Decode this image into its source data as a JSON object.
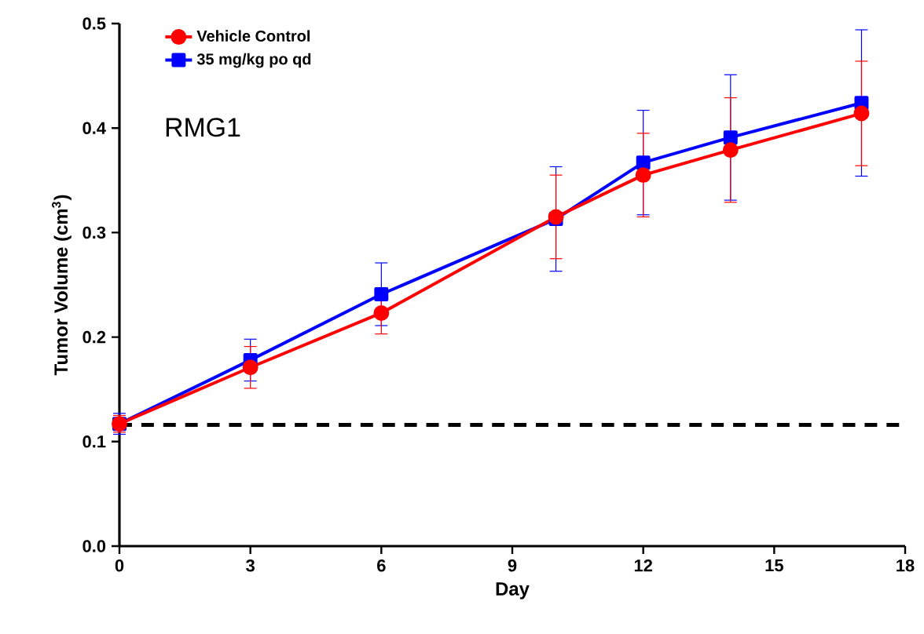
{
  "chart_data": {
    "type": "line",
    "xlabel": "Day",
    "ylabel": "Tumor Volume (cm$^{3}$)",
    "x": [
      0,
      3,
      6,
      10,
      12,
      14,
      17
    ],
    "series": [
      {
        "name": "Vehicle Control",
        "color": "#ff0000",
        "marker": "circle",
        "values": [
          0.117,
          0.171,
          0.223,
          0.315,
          0.355,
          0.379,
          0.414
        ],
        "errors": [
          0.008,
          0.02,
          0.02,
          0.04,
          0.04,
          0.05,
          0.05
        ]
      },
      {
        "name": "35 mg/kg po qd",
        "color": "#0000ff",
        "marker": "square",
        "values": [
          0.117,
          0.178,
          0.241,
          0.313,
          0.367,
          0.391,
          0.424
        ],
        "errors": [
          0.01,
          0.02,
          0.03,
          0.05,
          0.05,
          0.06,
          0.07
        ]
      }
    ],
    "xlim": [
      0,
      18
    ],
    "xticks": [
      0,
      3,
      6,
      9,
      12,
      15,
      18
    ],
    "ylim": [
      0,
      0.5
    ],
    "yticks": [
      {
        "value": 0,
        "label": "0.0"
      },
      {
        "value": 0.1,
        "label": "0.1"
      },
      {
        "value": 0.2,
        "label": "0.2"
      },
      {
        "value": 0.3,
        "label": "0.3"
      },
      {
        "value": 0.4,
        "label": "0.4"
      },
      {
        "value": 0.5,
        "label": "0.5"
      }
    ],
    "ref_lines": [
      {
        "axis": "y",
        "value": 0.116,
        "color": "#000000",
        "line_style": "dashed"
      }
    ],
    "annotations": [
      "RMG1"
    ],
    "legend": "top left",
    "grid": false,
    "line_style": "solid"
  }
}
